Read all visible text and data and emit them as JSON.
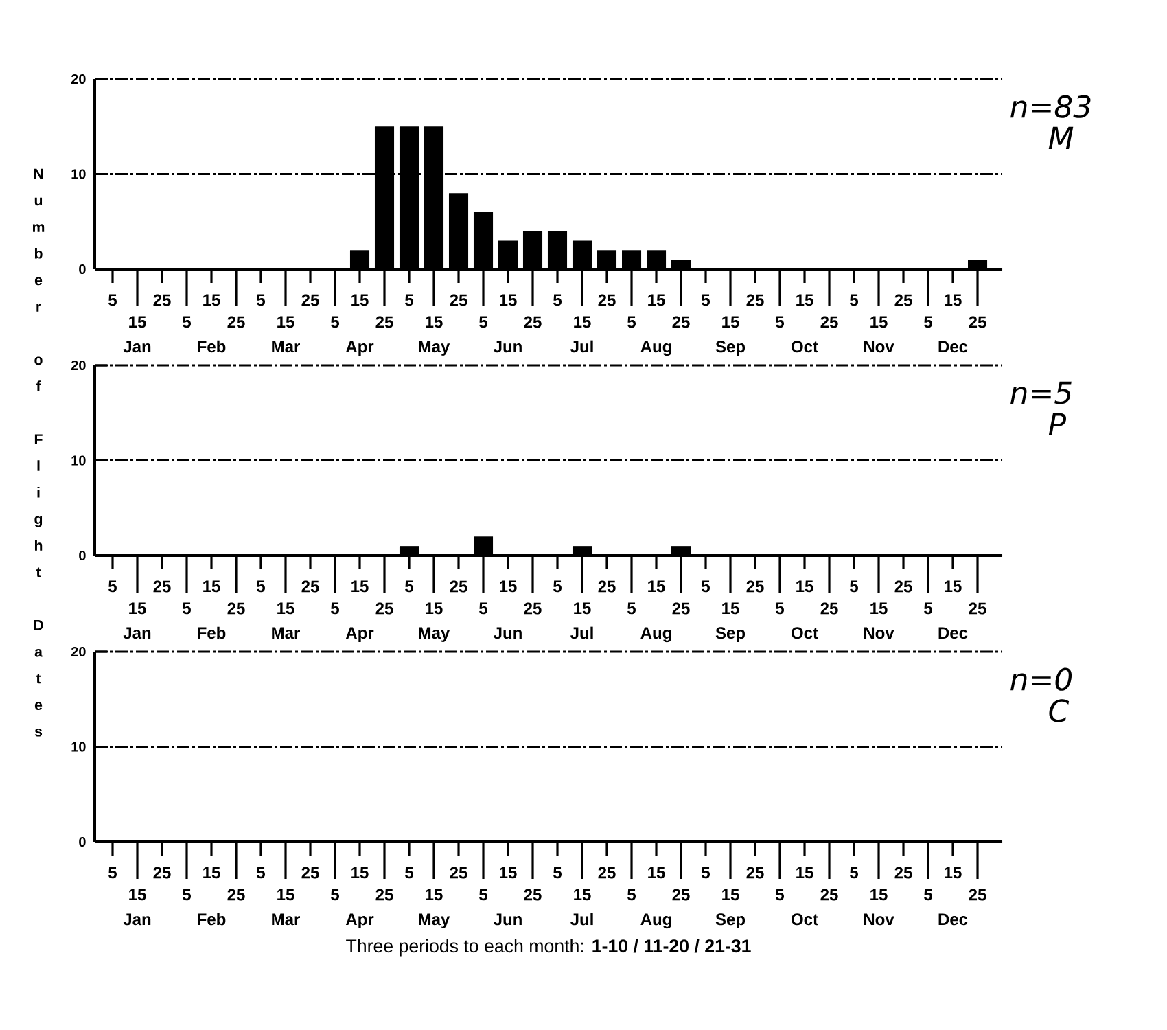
{
  "chart_data": [
    {
      "type": "bar",
      "categories": [
        "5",
        "15 Jan",
        "25",
        "5",
        "15 Feb",
        "25",
        "5",
        "15 Mar",
        "25",
        "5",
        "15 Apr",
        "25",
        "5",
        "15 May",
        "25",
        "5",
        "15 Jun",
        "25",
        "5",
        "15 Jul",
        "25",
        "5",
        "15 Aug",
        "25",
        "5",
        "15 Sep",
        "25",
        "5",
        "15 Oct",
        "25",
        "5",
        "15 Nov",
        "25",
        "5",
        "15 Dec",
        "25"
      ],
      "values": [
        0,
        0,
        0,
        0,
        0,
        0,
        0,
        0,
        0,
        0,
        2,
        15,
        15,
        15,
        8,
        6,
        3,
        4,
        4,
        3,
        2,
        2,
        2,
        1,
        0,
        0,
        0,
        0,
        0,
        0,
        0,
        0,
        0,
        0,
        0,
        1
      ],
      "color": "#000000",
      "ylim": [
        0,
        20
      ],
      "yticks": [
        0,
        10,
        20
      ],
      "grid": "y",
      "annotations": [
        "n=83",
        "M"
      ]
    },
    {
      "type": "bar",
      "categories": [
        "5",
        "15 Jan",
        "25",
        "5",
        "15 Feb",
        "25",
        "5",
        "15 Mar",
        "25",
        "5",
        "15 Apr",
        "25",
        "5",
        "15 May",
        "25",
        "5",
        "15 Jun",
        "25",
        "5",
        "15 Jul",
        "25",
        "5",
        "15 Aug",
        "25",
        "5",
        "15 Sep",
        "25",
        "5",
        "15 Oct",
        "25",
        "5",
        "15 Nov",
        "25",
        "5",
        "15 Dec",
        "25"
      ],
      "values": [
        0,
        0,
        0,
        0,
        0,
        0,
        0,
        0,
        0,
        0,
        0,
        0,
        1,
        0,
        0,
        2,
        0,
        0,
        0,
        1,
        0,
        0,
        0,
        1,
        0,
        0,
        0,
        0,
        0,
        0,
        0,
        0,
        0,
        0,
        0,
        0
      ],
      "color": "#000000",
      "ylim": [
        0,
        20
      ],
      "yticks": [
        0,
        10,
        20
      ],
      "grid": "y",
      "ylabel": "Number of Flight Dates",
      "annotations": [
        "n=5",
        "P"
      ]
    },
    {
      "type": "bar",
      "categories": [
        "5",
        "15 Jan",
        "25",
        "5",
        "15 Feb",
        "25",
        "5",
        "15 Mar",
        "25",
        "5",
        "15 Apr",
        "25",
        "5",
        "15 May",
        "25",
        "5",
        "15 Jun",
        "25",
        "5",
        "15 Jul",
        "25",
        "5",
        "15 Aug",
        "25",
        "5",
        "15 Sep",
        "25",
        "5",
        "15 Oct",
        "25",
        "5",
        "15 Nov",
        "25",
        "5",
        "15 Dec",
        "25"
      ],
      "values": [
        0,
        0,
        0,
        0,
        0,
        0,
        0,
        0,
        0,
        0,
        0,
        0,
        0,
        0,
        0,
        0,
        0,
        0,
        0,
        0,
        0,
        0,
        0,
        0,
        0,
        0,
        0,
        0,
        0,
        0,
        0,
        0,
        0,
        0,
        0,
        0
      ],
      "color": "#000000",
      "ylim": [
        0,
        20
      ],
      "yticks": [
        0,
        10,
        20
      ],
      "grid": "y",
      "xlabel": "Three periods to each month: **1-10 / 11-20 / 21-31**",
      "annotations": [
        "n=0",
        "C"
      ]
    }
  ]
}
